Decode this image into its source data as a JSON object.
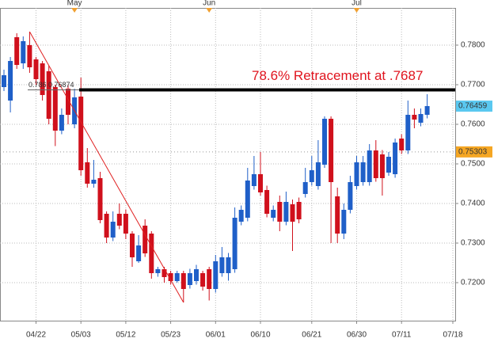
{
  "chart_data": {
    "type": "candlestick",
    "categories": [
      null,
      null,
      null,
      null,
      null,
      "04/22",
      null,
      null,
      null,
      null,
      null,
      null,
      "05/03",
      null,
      null,
      null,
      null,
      null,
      null,
      "05/12",
      null,
      null,
      null,
      null,
      null,
      null,
      "05/23",
      null,
      null,
      null,
      null,
      null,
      null,
      "06/01",
      null,
      null,
      null,
      null,
      null,
      null,
      "06/10",
      null,
      null,
      null,
      null,
      null,
      null,
      null,
      "06/21",
      null,
      null,
      null,
      null,
      null,
      null,
      "06/30",
      null,
      null,
      null,
      null,
      null,
      null,
      "07/11",
      null,
      null,
      null,
      null,
      null,
      null,
      null,
      "07/18"
    ],
    "months": [
      null,
      null,
      null,
      null,
      null,
      null,
      null,
      null,
      null,
      null,
      null,
      "May",
      null,
      null,
      null,
      null,
      null,
      null,
      null,
      null,
      null,
      null,
      null,
      null,
      null,
      null,
      null,
      null,
      null,
      null,
      null,
      null,
      "Jun",
      null,
      null,
      null,
      null,
      null,
      null,
      null,
      null,
      null,
      null,
      null,
      null,
      null,
      null,
      null,
      null,
      null,
      null,
      null,
      null,
      null,
      null,
      "Jul",
      null,
      null,
      null,
      null,
      null,
      null,
      null,
      null,
      null,
      null,
      null,
      null,
      null,
      null,
      null
    ],
    "open": [
      0.7694,
      0.766,
      0.782,
      0.7754,
      0.78,
      0.7764,
      0.7754,
      0.7734,
      0.7694,
      0.7584,
      0.769,
      0.76,
      0.767,
      0.7504,
      0.745,
      0.7464,
      0.7374,
      0.7314,
      0.7374,
      0.7374,
      0.7324,
      0.7254,
      0.7344,
      0.7324,
      0.7224,
      0.7234,
      0.7224,
      0.7204,
      0.7224,
      0.7194,
      0.7204,
      0.7224,
      0.7234,
      0.7184,
      0.7224,
      0.7224,
      0.7234,
      0.7354,
      0.7364,
      0.7444,
      0.7474,
      0.7434,
      0.7364,
      0.7404,
      0.7354,
      0.7398,
      0.7404,
      0.7424,
      0.7454,
      0.7444,
      0.7498,
      0.7614,
      0.7418,
      0.7324,
      0.7384,
      0.7444,
      0.7454,
      0.7454,
      0.7534,
      0.7524,
      0.7478,
      0.7474,
      0.7564,
      0.7534,
      0.7624,
      0.7604,
      0.7624,
      null,
      null,
      null,
      null
    ],
    "high": [
      0.7738,
      0.777,
      0.783,
      0.7822,
      0.7834,
      0.777,
      0.776,
      0.7748,
      0.77,
      0.764,
      0.77,
      0.769,
      0.7718,
      0.754,
      0.751,
      0.748,
      0.738,
      0.738,
      0.74,
      0.7385,
      0.733,
      0.732,
      0.736,
      0.733,
      0.724,
      0.724,
      0.723,
      0.723,
      0.723,
      0.7235,
      0.7245,
      0.723,
      0.724,
      0.727,
      0.729,
      0.7275,
      0.739,
      0.7395,
      0.749,
      0.752,
      0.753,
      0.7445,
      0.7395,
      0.742,
      0.743,
      0.741,
      0.7415,
      0.749,
      0.752,
      0.756,
      0.762,
      0.762,
      0.744,
      0.74,
      0.747,
      0.752,
      0.752,
      0.755,
      0.756,
      0.7535,
      0.753,
      0.7564,
      0.7575,
      0.766,
      0.764,
      0.764,
      0.7676,
      null,
      null,
      null,
      null
    ],
    "low": [
      0.7684,
      0.763,
      0.774,
      0.774,
      0.773,
      0.77,
      0.766,
      0.76,
      0.7545,
      0.7575,
      0.76,
      0.759,
      0.747,
      0.744,
      0.744,
      0.735,
      0.73,
      0.7305,
      0.7335,
      0.731,
      0.724,
      0.725,
      0.7265,
      0.721,
      0.7215,
      0.72,
      0.7195,
      0.72,
      0.715,
      0.7185,
      0.7195,
      0.718,
      0.7155,
      0.7175,
      0.7215,
      0.7205,
      0.7225,
      0.7345,
      0.7355,
      0.7435,
      0.742,
      0.7365,
      0.7355,
      0.733,
      0.7345,
      0.728,
      0.735,
      0.7415,
      0.7445,
      0.7435,
      0.749,
      0.73,
      0.73,
      0.731,
      0.7375,
      0.7435,
      0.7445,
      0.7445,
      0.7455,
      0.742,
      0.747,
      0.7465,
      0.7525,
      0.7525,
      0.759,
      0.7595,
      0.7615,
      null,
      null,
      null,
      null
    ],
    "close": [
      0.7724,
      0.776,
      0.775,
      0.781,
      0.7744,
      0.7714,
      0.7674,
      0.7614,
      0.7584,
      0.7624,
      0.7624,
      0.7668,
      0.7484,
      0.745,
      0.746,
      0.7358,
      0.7314,
      0.7354,
      0.7344,
      0.7324,
      0.7264,
      0.7294,
      0.7274,
      0.7224,
      0.7234,
      0.7214,
      0.7204,
      0.7224,
      0.7184,
      0.7224,
      0.7234,
      0.719,
      0.7184,
      0.7254,
      0.7264,
      0.7264,
      0.7364,
      0.7384,
      0.7458,
      0.7474,
      0.7428,
      0.7374,
      0.7384,
      0.7354,
      0.7404,
      0.7354,
      0.736,
      0.7454,
      0.7484,
      0.7504,
      0.7614,
      0.7454,
      0.7324,
      0.7384,
      0.7454,
      0.7504,
      0.7504,
      0.7534,
      0.7464,
      0.7464,
      0.7518,
      0.7554,
      0.7534,
      0.7624,
      0.7612,
      0.7626,
      0.7646,
      null,
      null,
      null,
      null
    ],
    "up_color": "#1f5fc8",
    "down_color": "#d0101c",
    "ylim": [
      0.7104,
      0.7894
    ],
    "yticks": [
      {
        "value": 0.72,
        "label": "0.7200"
      },
      {
        "value": 0.73,
        "label": "0.7300"
      },
      {
        "value": 0.74,
        "label": "0.7400"
      },
      {
        "value": 0.75,
        "label": "0.7500"
      },
      {
        "value": 0.76,
        "label": "0.7600"
      },
      {
        "value": 0.77,
        "label": "0.7700"
      },
      {
        "value": 0.78,
        "label": "0.7800"
      }
    ],
    "grid": true,
    "last_price": 0.76459,
    "marker_price": 0.75303,
    "retracement": {
      "level": 0.7687,
      "label": "78.6% Retracement at .7687",
      "fib_text": "0.786 0.76874",
      "swing_high": 0.7834,
      "swing_low": 0.715
    }
  }
}
